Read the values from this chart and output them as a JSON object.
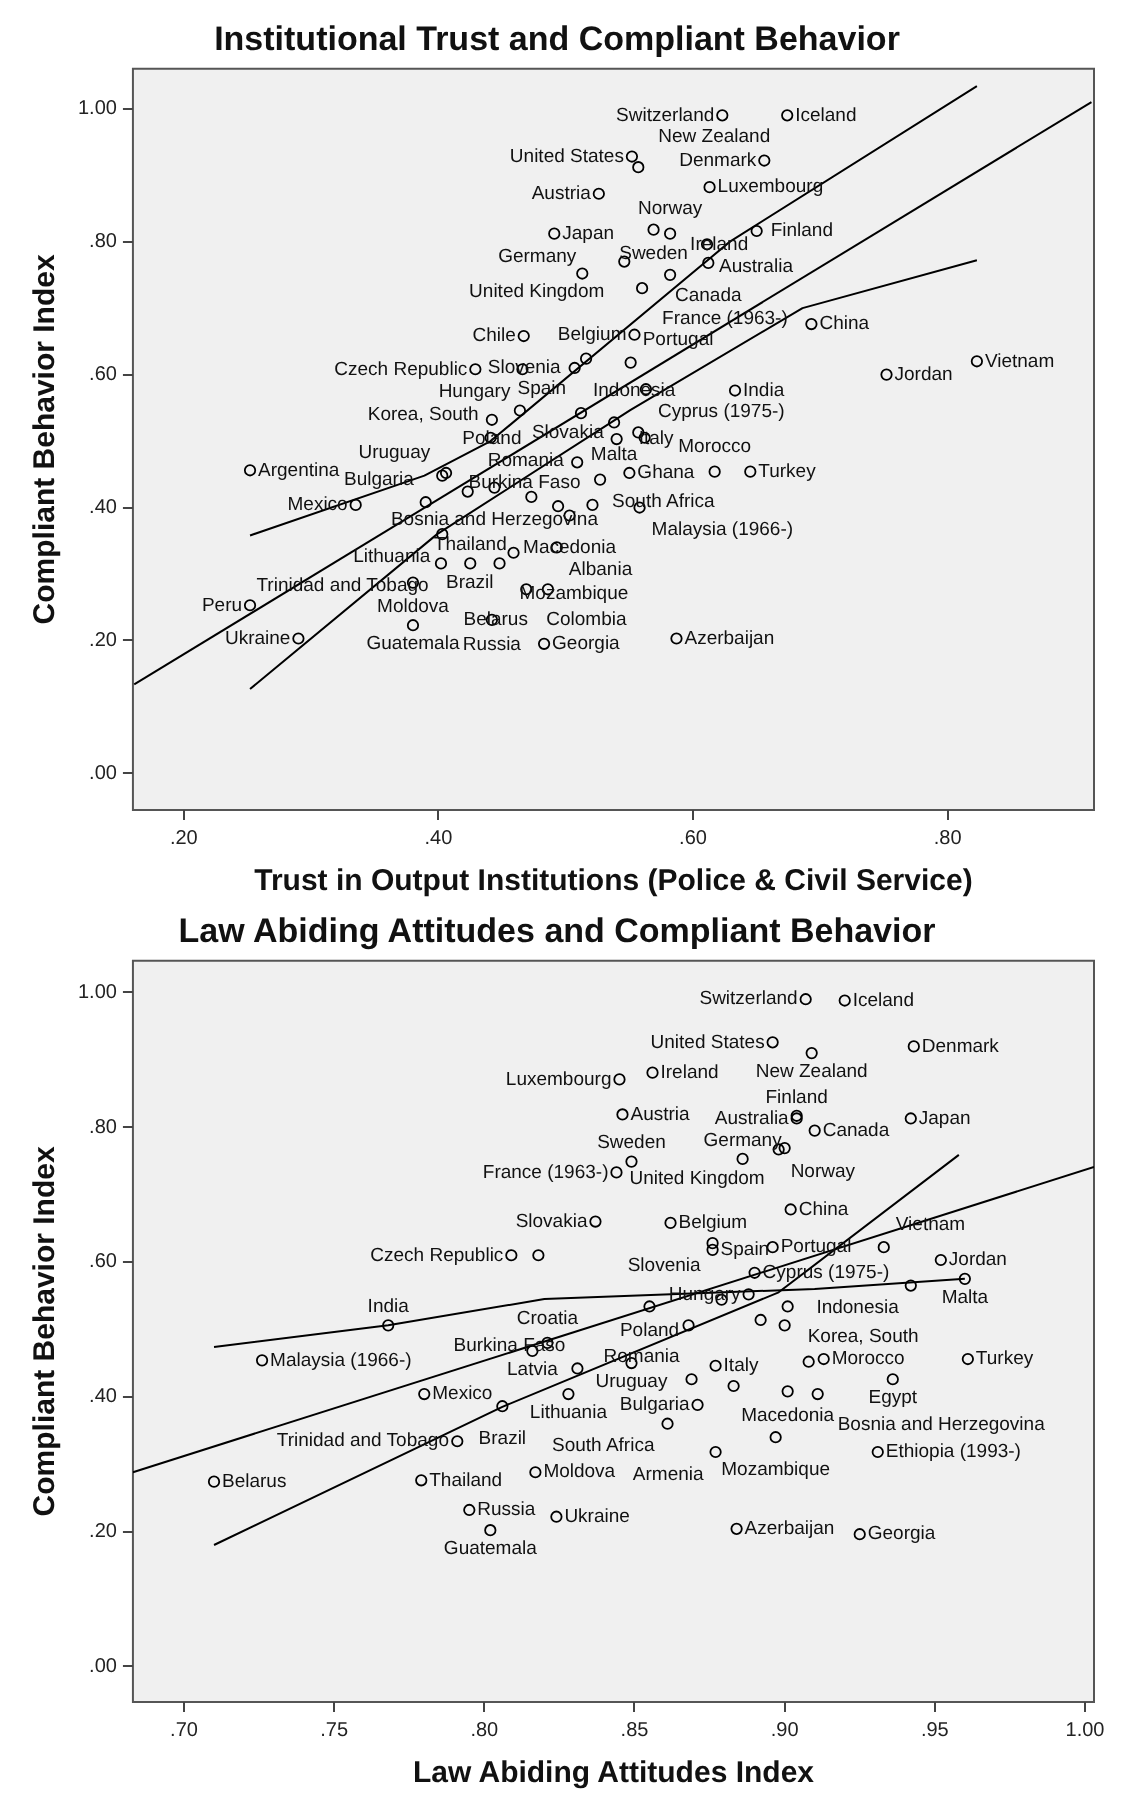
{
  "chart_data": [
    {
      "type": "scatter",
      "title": "Institutional Trust and Compliant Behavior",
      "xlabel": "Trust in Output Institutions (Police & Civil Service)",
      "ylabel": "Compliant Behavior Index",
      "xlim": [
        0.16,
        0.915
      ],
      "ylim": [
        -0.055,
        1.06
      ],
      "xticks": [
        {
          "value": 0.2,
          "label": ".20"
        },
        {
          "value": 0.4,
          "label": ".40"
        },
        {
          "value": 0.6,
          "label": ".60"
        },
        {
          "value": 0.8,
          "label": ".80"
        }
      ],
      "yticks": [
        {
          "value": 0,
          "label": ".00"
        },
        {
          "value": 0.2,
          "label": ".20"
        },
        {
          "value": 0.4,
          "label": ".40"
        },
        {
          "value": 0.6,
          "label": ".60"
        },
        {
          "value": 0.8,
          "label": ".80"
        },
        {
          "value": 1,
          "label": "1.00"
        }
      ],
      "series": [
        {
          "marker": "circle",
          "color": "#000000",
          "x": [
            0.623,
            0.674,
            0.552,
            0.557,
            0.656,
            0.613,
            0.526,
            0.611,
            0.491,
            0.569,
            0.65,
            0.546,
            0.513,
            0.612,
            0.582,
            0.56,
            0.554,
            0.582,
            0.693,
            0.467,
            0.516,
            0.551,
            0.507,
            0.429,
            0.563,
            0.752,
            0.823,
            0.466,
            0.464,
            0.512,
            0.633,
            0.538,
            0.442,
            0.252,
            0.403,
            0.441,
            0.54,
            0.55,
            0.617,
            0.645,
            0.335,
            0.39,
            0.423,
            0.527,
            0.558,
            0.444,
            0.403,
            0.503,
            0.521,
            0.402,
            0.493,
            0.459,
            0.252,
            0.38,
            0.448,
            0.469,
            0.486,
            0.38,
            0.425,
            0.587,
            0.29,
            0.442,
            0.483,
            0.557,
            0.562,
            0.509,
            0.473,
            0.406,
            0.494
          ],
          "values": [
            0.99,
            0.99,
            0.928,
            0.912,
            0.922,
            0.882,
            0.872,
            0.796,
            0.812,
            0.818,
            0.816,
            0.77,
            0.752,
            0.768,
            0.75,
            0.73,
            0.66,
            0.812,
            0.676,
            0.658,
            0.624,
            0.618,
            0.61,
            0.608,
            0.578,
            0.6,
            0.62,
            0.608,
            0.546,
            0.542,
            0.576,
            0.528,
            0.532,
            0.456,
            0.448,
            0.505,
            0.503,
            0.452,
            0.454,
            0.454,
            0.404,
            0.408,
            0.424,
            0.442,
            0.4,
            0.43,
            0.36,
            0.388,
            0.404,
            0.316,
            0.34,
            0.332,
            0.253,
            0.287,
            0.316,
            0.277,
            0.277,
            0.223,
            0.316,
            0.203,
            0.203,
            0.231,
            0.195,
            0.513,
            0.505,
            0.468,
            0.416,
            0.452,
            0.402
          ]
        },
        {
          "type": "line",
          "color": "#000000",
          "x": [
            0.161,
            0.913
          ],
          "values": [
            0.134,
            1.01
          ]
        },
        {
          "type": "line",
          "color": "#000000",
          "x": [
            0.252,
            0.389,
            0.441,
            0.629,
            0.823
          ],
          "values": [
            0.358,
            0.448,
            0.5,
            0.8,
            1.034
          ]
        },
        {
          "type": "line",
          "color": "#000000",
          "x": [
            0.252,
            0.399,
            0.551,
            0.686,
            0.823
          ],
          "values": [
            0.127,
            0.36,
            0.547,
            0.7,
            0.772
          ]
        }
      ],
      "annotations": [
        {
          "text": "Switzerland",
          "x": 0.623,
          "y": 0.99
        },
        {
          "text": "Iceland",
          "x": 0.674,
          "y": 0.99
        },
        {
          "text": "United States",
          "x": 0.552,
          "y": 0.928
        },
        {
          "text": "New Zealand",
          "x": 0.557,
          "y": 0.912
        },
        {
          "text": "Denmark",
          "x": 0.656,
          "y": 0.922
        },
        {
          "text": "Luxembourg",
          "x": 0.613,
          "y": 0.882
        },
        {
          "text": "Austria",
          "x": 0.526,
          "y": 0.872
        },
        {
          "text": "Australia",
          "x": 0.611,
          "y": 0.796
        },
        {
          "text": "Japan",
          "x": 0.491,
          "y": 0.812
        },
        {
          "text": "Sweden",
          "x": 0.569,
          "y": 0.818
        },
        {
          "text": "Finland",
          "x": 0.65,
          "y": 0.816
        },
        {
          "text": "United Kingdom",
          "x": 0.546,
          "y": 0.77
        },
        {
          "text": "Germany",
          "x": 0.513,
          "y": 0.752
        },
        {
          "text": "Canada",
          "x": 0.612,
          "y": 0.768
        },
        {
          "text": "Ireland",
          "x": 0.582,
          "y": 0.75
        },
        {
          "text": "France (1963-)",
          "x": 0.56,
          "y": 0.73
        },
        {
          "text": "Belgium",
          "x": 0.554,
          "y": 0.66
        },
        {
          "text": "Norway",
          "x": 0.582,
          "y": 0.812
        },
        {
          "text": "China",
          "x": 0.693,
          "y": 0.676
        },
        {
          "text": "Chile",
          "x": 0.467,
          "y": 0.658
        },
        {
          "text": "Spain",
          "x": 0.516,
          "y": 0.624
        },
        {
          "text": "Portugal",
          "x": 0.551,
          "y": 0.618
        },
        {
          "text": "Slovenia",
          "x": 0.507,
          "y": 0.61
        },
        {
          "text": "Czech Republic",
          "x": 0.429,
          "y": 0.608
        },
        {
          "text": "Cyprus (1975-)",
          "x": 0.563,
          "y": 0.578
        },
        {
          "text": "Jordan",
          "x": 0.752,
          "y": 0.6
        },
        {
          "text": "Vietnam",
          "x": 0.823,
          "y": 0.62
        },
        {
          "text": "Hungary",
          "x": 0.466,
          "y": 0.608
        },
        {
          "text": "Slovakia",
          "x": 0.464,
          "y": 0.546
        },
        {
          "text": "Indonesia",
          "x": 0.512,
          "y": 0.542
        },
        {
          "text": "India",
          "x": 0.633,
          "y": 0.576
        },
        {
          "text": "Malta",
          "x": 0.538,
          "y": 0.528
        },
        {
          "text": "Poland",
          "x": 0.442,
          "y": 0.532
        },
        {
          "text": "Argentina",
          "x": 0.252,
          "y": 0.456
        },
        {
          "text": "Uruguay",
          "x": 0.403,
          "y": 0.448
        },
        {
          "text": "Korea, South",
          "x": 0.441,
          "y": 0.505
        },
        {
          "text": "Italy",
          "x": 0.54,
          "y": 0.503
        },
        {
          "text": "Ghana",
          "x": 0.55,
          "y": 0.452
        },
        {
          "text": "Morocco",
          "x": 0.617,
          "y": 0.454
        },
        {
          "text": "Turkey",
          "x": 0.645,
          "y": 0.454
        },
        {
          "text": "Mexico",
          "x": 0.335,
          "y": 0.404
        },
        {
          "text": "Bulgaria",
          "x": 0.39,
          "y": 0.408
        },
        {
          "text": "Romania",
          "x": 0.423,
          "y": 0.424
        },
        {
          "text": "South Africa",
          "x": 0.527,
          "y": 0.442
        },
        {
          "text": "Malaysia (1966-)",
          "x": 0.558,
          "y": 0.4
        },
        {
          "text": "Bosnia and Herzegovina",
          "x": 0.444,
          "y": 0.43
        },
        {
          "text": "Lithuania",
          "x": 0.403,
          "y": 0.36
        },
        {
          "text": "Macedonia",
          "x": 0.503,
          "y": 0.388
        },
        {
          "text": "Burkina Faso",
          "x": 0.521,
          "y": 0.404
        },
        {
          "text": "Trinidad and Tobago",
          "x": 0.402,
          "y": 0.316
        },
        {
          "text": "Albania",
          "x": 0.493,
          "y": 0.34
        },
        {
          "text": "Brazil",
          "x": 0.459,
          "y": 0.332
        },
        {
          "text": "Peru",
          "x": 0.252,
          "y": 0.253
        },
        {
          "text": "Moldova",
          "x": 0.38,
          "y": 0.287
        },
        {
          "text": "Mozambique",
          "x": 0.448,
          "y": 0.316
        },
        {
          "text": "Colombia",
          "x": 0.469,
          "y": 0.277
        },
        {
          "text": "Belarus",
          "x": 0.486,
          "y": 0.277
        },
        {
          "text": "Guatemala",
          "x": 0.38,
          "y": 0.223
        },
        {
          "text": "Thailand",
          "x": 0.425,
          "y": 0.316
        },
        {
          "text": "Azerbaijan",
          "x": 0.587,
          "y": 0.203
        },
        {
          "text": "Ukraine",
          "x": 0.29,
          "y": 0.203
        },
        {
          "text": "Russia",
          "x": 0.442,
          "y": 0.231
        },
        {
          "text": "Georgia",
          "x": 0.483,
          "y": 0.195
        }
      ]
    },
    {
      "type": "scatter",
      "title": "Law Abiding Attitudes and Compliant Behavior",
      "xlabel": "Law Abiding Attitudes Index",
      "ylabel": "Compliant Behavior Index",
      "xlim": [
        0.683,
        1.003
      ],
      "ylim": [
        -0.053,
        1.047
      ],
      "xticks": [
        {
          "value": 0.7,
          "label": ".70"
        },
        {
          "value": 0.75,
          "label": ".75"
        },
        {
          "value": 0.8,
          "label": ".80"
        },
        {
          "value": 0.85,
          "label": ".85"
        },
        {
          "value": 0.9,
          "label": ".90"
        },
        {
          "value": 0.95,
          "label": ".95"
        },
        {
          "value": 1,
          "label": "1.00"
        }
      ],
      "yticks": [
        {
          "value": 0,
          "label": ".00"
        },
        {
          "value": 0.2,
          "label": ".20"
        },
        {
          "value": 0.4,
          "label": ".40"
        },
        {
          "value": 0.6,
          "label": ".60"
        },
        {
          "value": 0.8,
          "label": ".80"
        },
        {
          "value": 1,
          "label": "1.00"
        }
      ],
      "series": [
        {
          "marker": "circle",
          "color": "#000000",
          "x": [
            0.907,
            0.92,
            0.896,
            0.909,
            0.943,
            0.845,
            0.846,
            0.904,
            0.904,
            0.942,
            0.91,
            0.898,
            0.9,
            0.849,
            0.856,
            0.844,
            0.886,
            0.902,
            0.862,
            0.837,
            0.876,
            0.876,
            0.809,
            0.896,
            0.933,
            0.952,
            0.96,
            0.942,
            0.89,
            0.888,
            0.855,
            0.901,
            0.768,
            0.816,
            0.821,
            0.849,
            0.913,
            0.828,
            0.831,
            0.869,
            0.877,
            0.936,
            0.961,
            0.726,
            0.78,
            0.806,
            0.861,
            0.871,
            0.911,
            0.897,
            0.901,
            0.791,
            0.877,
            0.931,
            0.71,
            0.779,
            0.795,
            0.817,
            0.884,
            0.925,
            0.802,
            0.824,
            0.818,
            0.879,
            0.868,
            0.892,
            0.9,
            0.908,
            0.883
          ],
          "values": [
            0.99,
            0.988,
            0.926,
            0.91,
            0.92,
            0.871,
            0.819,
            0.813,
            0.817,
            0.813,
            0.795,
            0.767,
            0.769,
            0.749,
            0.881,
            0.733,
            0.753,
            0.678,
            0.658,
            0.66,
            0.628,
            0.618,
            0.61,
            0.622,
            0.622,
            0.603,
            0.575,
            0.565,
            0.584,
            0.552,
            0.534,
            0.534,
            0.506,
            0.468,
            0.48,
            0.45,
            0.456,
            0.404,
            0.442,
            0.426,
            0.446,
            0.426,
            0.456,
            0.454,
            0.404,
            0.386,
            0.36,
            0.388,
            0.404,
            0.34,
            0.408,
            0.334,
            0.318,
            0.318,
            0.274,
            0.276,
            0.232,
            0.288,
            0.204,
            0.196,
            0.202,
            0.222,
            0.61,
            0.544,
            0.506,
            0.514,
            0.506,
            0.452,
            0.416
          ]
        },
        {
          "type": "line",
          "color": "#000000",
          "x": [
            0.683,
            1.003
          ],
          "values": [
            0.288,
            0.741
          ]
        },
        {
          "type": "line",
          "color": "#000000",
          "x": [
            0.71,
            0.768,
            0.82,
            0.91,
            0.96
          ],
          "values": [
            0.474,
            0.506,
            0.545,
            0.56,
            0.575
          ]
        },
        {
          "type": "line",
          "color": "#000000",
          "x": [
            0.71,
            0.806,
            0.898,
            0.958
          ],
          "values": [
            0.18,
            0.385,
            0.555,
            0.759
          ]
        }
      ],
      "annotations": [
        {
          "text": "Switzerland",
          "x": 0.907,
          "y": 0.99
        },
        {
          "text": "Iceland",
          "x": 0.92,
          "y": 0.988
        },
        {
          "text": "United States",
          "x": 0.896,
          "y": 0.926
        },
        {
          "text": "New Zealand",
          "x": 0.909,
          "y": 0.91
        },
        {
          "text": "Denmark",
          "x": 0.943,
          "y": 0.92
        },
        {
          "text": "Luxembourg",
          "x": 0.845,
          "y": 0.871
        },
        {
          "text": "Austria",
          "x": 0.846,
          "y": 0.819
        },
        {
          "text": "Australia",
          "x": 0.904,
          "y": 0.813
        },
        {
          "text": "Finland",
          "x": 0.904,
          "y": 0.817
        },
        {
          "text": "Japan",
          "x": 0.942,
          "y": 0.813
        },
        {
          "text": "Canada",
          "x": 0.91,
          "y": 0.795
        },
        {
          "text": "Norway",
          "x": 0.898,
          "y": 0.767
        },
        {
          "text": "United Kingdom",
          "x": 0.9,
          "y": 0.769
        },
        {
          "text": "Sweden",
          "x": 0.849,
          "y": 0.749
        },
        {
          "text": "Ireland",
          "x": 0.856,
          "y": 0.881
        },
        {
          "text": "France (1963-)",
          "x": 0.844,
          "y": 0.733
        },
        {
          "text": "Germany",
          "x": 0.886,
          "y": 0.753
        },
        {
          "text": "China",
          "x": 0.902,
          "y": 0.678
        },
        {
          "text": "Belgium",
          "x": 0.862,
          "y": 0.658
        },
        {
          "text": "Slovakia",
          "x": 0.837,
          "y": 0.66
        },
        {
          "text": "Slovenia",
          "x": 0.876,
          "y": 0.628
        },
        {
          "text": "Spain",
          "x": 0.876,
          "y": 0.618
        },
        {
          "text": "Czech Republic",
          "x": 0.809,
          "y": 0.61
        },
        {
          "text": "Portugal",
          "x": 0.896,
          "y": 0.622
        },
        {
          "text": "Vietnam",
          "x": 0.933,
          "y": 0.622
        },
        {
          "text": "Jordan",
          "x": 0.952,
          "y": 0.603
        },
        {
          "text": "Malta",
          "x": 0.96,
          "y": 0.575
        },
        {
          "text": "Indonesia",
          "x": 0.942,
          "y": 0.565
        },
        {
          "text": "Cyprus (1975-)",
          "x": 0.89,
          "y": 0.584
        },
        {
          "text": "Hungary",
          "x": 0.888,
          "y": 0.552
        },
        {
          "text": "Poland",
          "x": 0.855,
          "y": 0.534
        },
        {
          "text": "Korea, South",
          "x": 0.901,
          "y": 0.534
        },
        {
          "text": "India",
          "x": 0.768,
          "y": 0.506
        },
        {
          "text": "Latvia",
          "x": 0.816,
          "y": 0.468
        },
        {
          "text": "Croatia",
          "x": 0.821,
          "y": 0.48
        },
        {
          "text": "Uruguay",
          "x": 0.849,
          "y": 0.45
        },
        {
          "text": "Morocco",
          "x": 0.913,
          "y": 0.456
        },
        {
          "text": "Lithuania",
          "x": 0.828,
          "y": 0.404
        },
        {
          "text": "Burkina Faso",
          "x": 0.831,
          "y": 0.442
        },
        {
          "text": "Romania",
          "x": 0.869,
          "y": 0.426
        },
        {
          "text": "Italy",
          "x": 0.877,
          "y": 0.446
        },
        {
          "text": "Egypt",
          "x": 0.936,
          "y": 0.426
        },
        {
          "text": "Turkey",
          "x": 0.961,
          "y": 0.456
        },
        {
          "text": "Malaysia (1966-)",
          "x": 0.726,
          "y": 0.454
        },
        {
          "text": "Mexico",
          "x": 0.78,
          "y": 0.404
        },
        {
          "text": "Brazil",
          "x": 0.806,
          "y": 0.386
        },
        {
          "text": "South Africa",
          "x": 0.861,
          "y": 0.36
        },
        {
          "text": "Bulgaria",
          "x": 0.871,
          "y": 0.388
        },
        {
          "text": "Bosnia and Herzegovina",
          "x": 0.911,
          "y": 0.404
        },
        {
          "text": "Mozambique",
          "x": 0.897,
          "y": 0.34
        },
        {
          "text": "Macedonia",
          "x": 0.901,
          "y": 0.408
        },
        {
          "text": "Trinidad and Tobago",
          "x": 0.791,
          "y": 0.334
        },
        {
          "text": "Armenia",
          "x": 0.877,
          "y": 0.318
        },
        {
          "text": "Ethiopia (1993-)",
          "x": 0.931,
          "y": 0.318
        },
        {
          "text": "Belarus",
          "x": 0.71,
          "y": 0.274
        },
        {
          "text": "Thailand",
          "x": 0.779,
          "y": 0.276
        },
        {
          "text": "Russia",
          "x": 0.795,
          "y": 0.232
        },
        {
          "text": "Moldova",
          "x": 0.817,
          "y": 0.288
        },
        {
          "text": "Azerbaijan",
          "x": 0.884,
          "y": 0.204
        },
        {
          "text": "Georgia",
          "x": 0.925,
          "y": 0.196
        },
        {
          "text": "Guatemala",
          "x": 0.802,
          "y": 0.202
        },
        {
          "text": "Ukraine",
          "x": 0.824,
          "y": 0.222
        }
      ]
    }
  ]
}
